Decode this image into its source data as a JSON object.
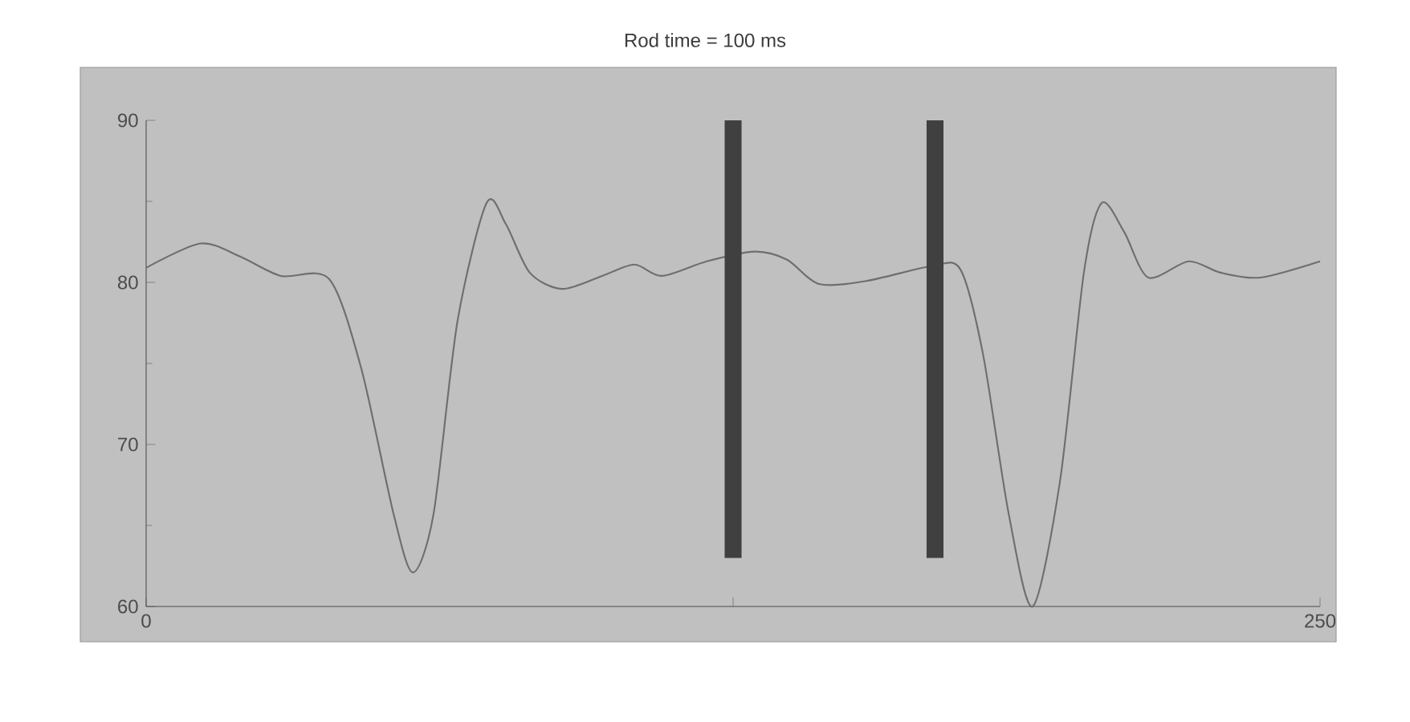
{
  "chart_data": {
    "type": "line",
    "title": "Rod time = 100 ms",
    "xlim": [
      0,
      250
    ],
    "ylim": [
      60,
      90
    ],
    "xticks": [
      0,
      {
        "value": 125,
        "label": null
      },
      250
    ],
    "yticks": [
      60,
      70,
      80,
      90
    ],
    "series": [
      {
        "color": "#6e6e6e",
        "x": [
          0,
          11.6,
          20,
          28.7,
          39,
          45.8,
          52.7,
          56.8,
          61.2,
          66.3,
          72.5,
          76.6,
          81.7,
          88.6,
          97.1,
          104,
          109.8,
          119.4,
          129.6,
          136.5,
          143.3,
          153.6,
          167.2,
          173.4,
          178.2,
          183.7,
          188.8,
          194.6,
          199.7,
          203.5,
          208.3,
          213.4,
          222,
          228.8,
          237.3,
          250
        ],
        "values": [
          80.9,
          82.4,
          81.6,
          80.4,
          80.2,
          74.7,
          65.7,
          62.1,
          65.7,
          77.6,
          84.9,
          83.6,
          80.6,
          79.6,
          80.4,
          81.1,
          80.4,
          81.3,
          81.9,
          81.4,
          79.9,
          80.1,
          81,
          80.8,
          75.6,
          65.7,
          60,
          67.7,
          80.6,
          84.9,
          83.1,
          80.3,
          81.3,
          80.6,
          80.3,
          81.3
        ]
      },
      {
        "type": "bar",
        "color": "#404040",
        "x": [
          125,
          168
        ],
        "base": [
          63,
          63
        ],
        "values": [
          27,
          27
        ]
      }
    ]
  }
}
